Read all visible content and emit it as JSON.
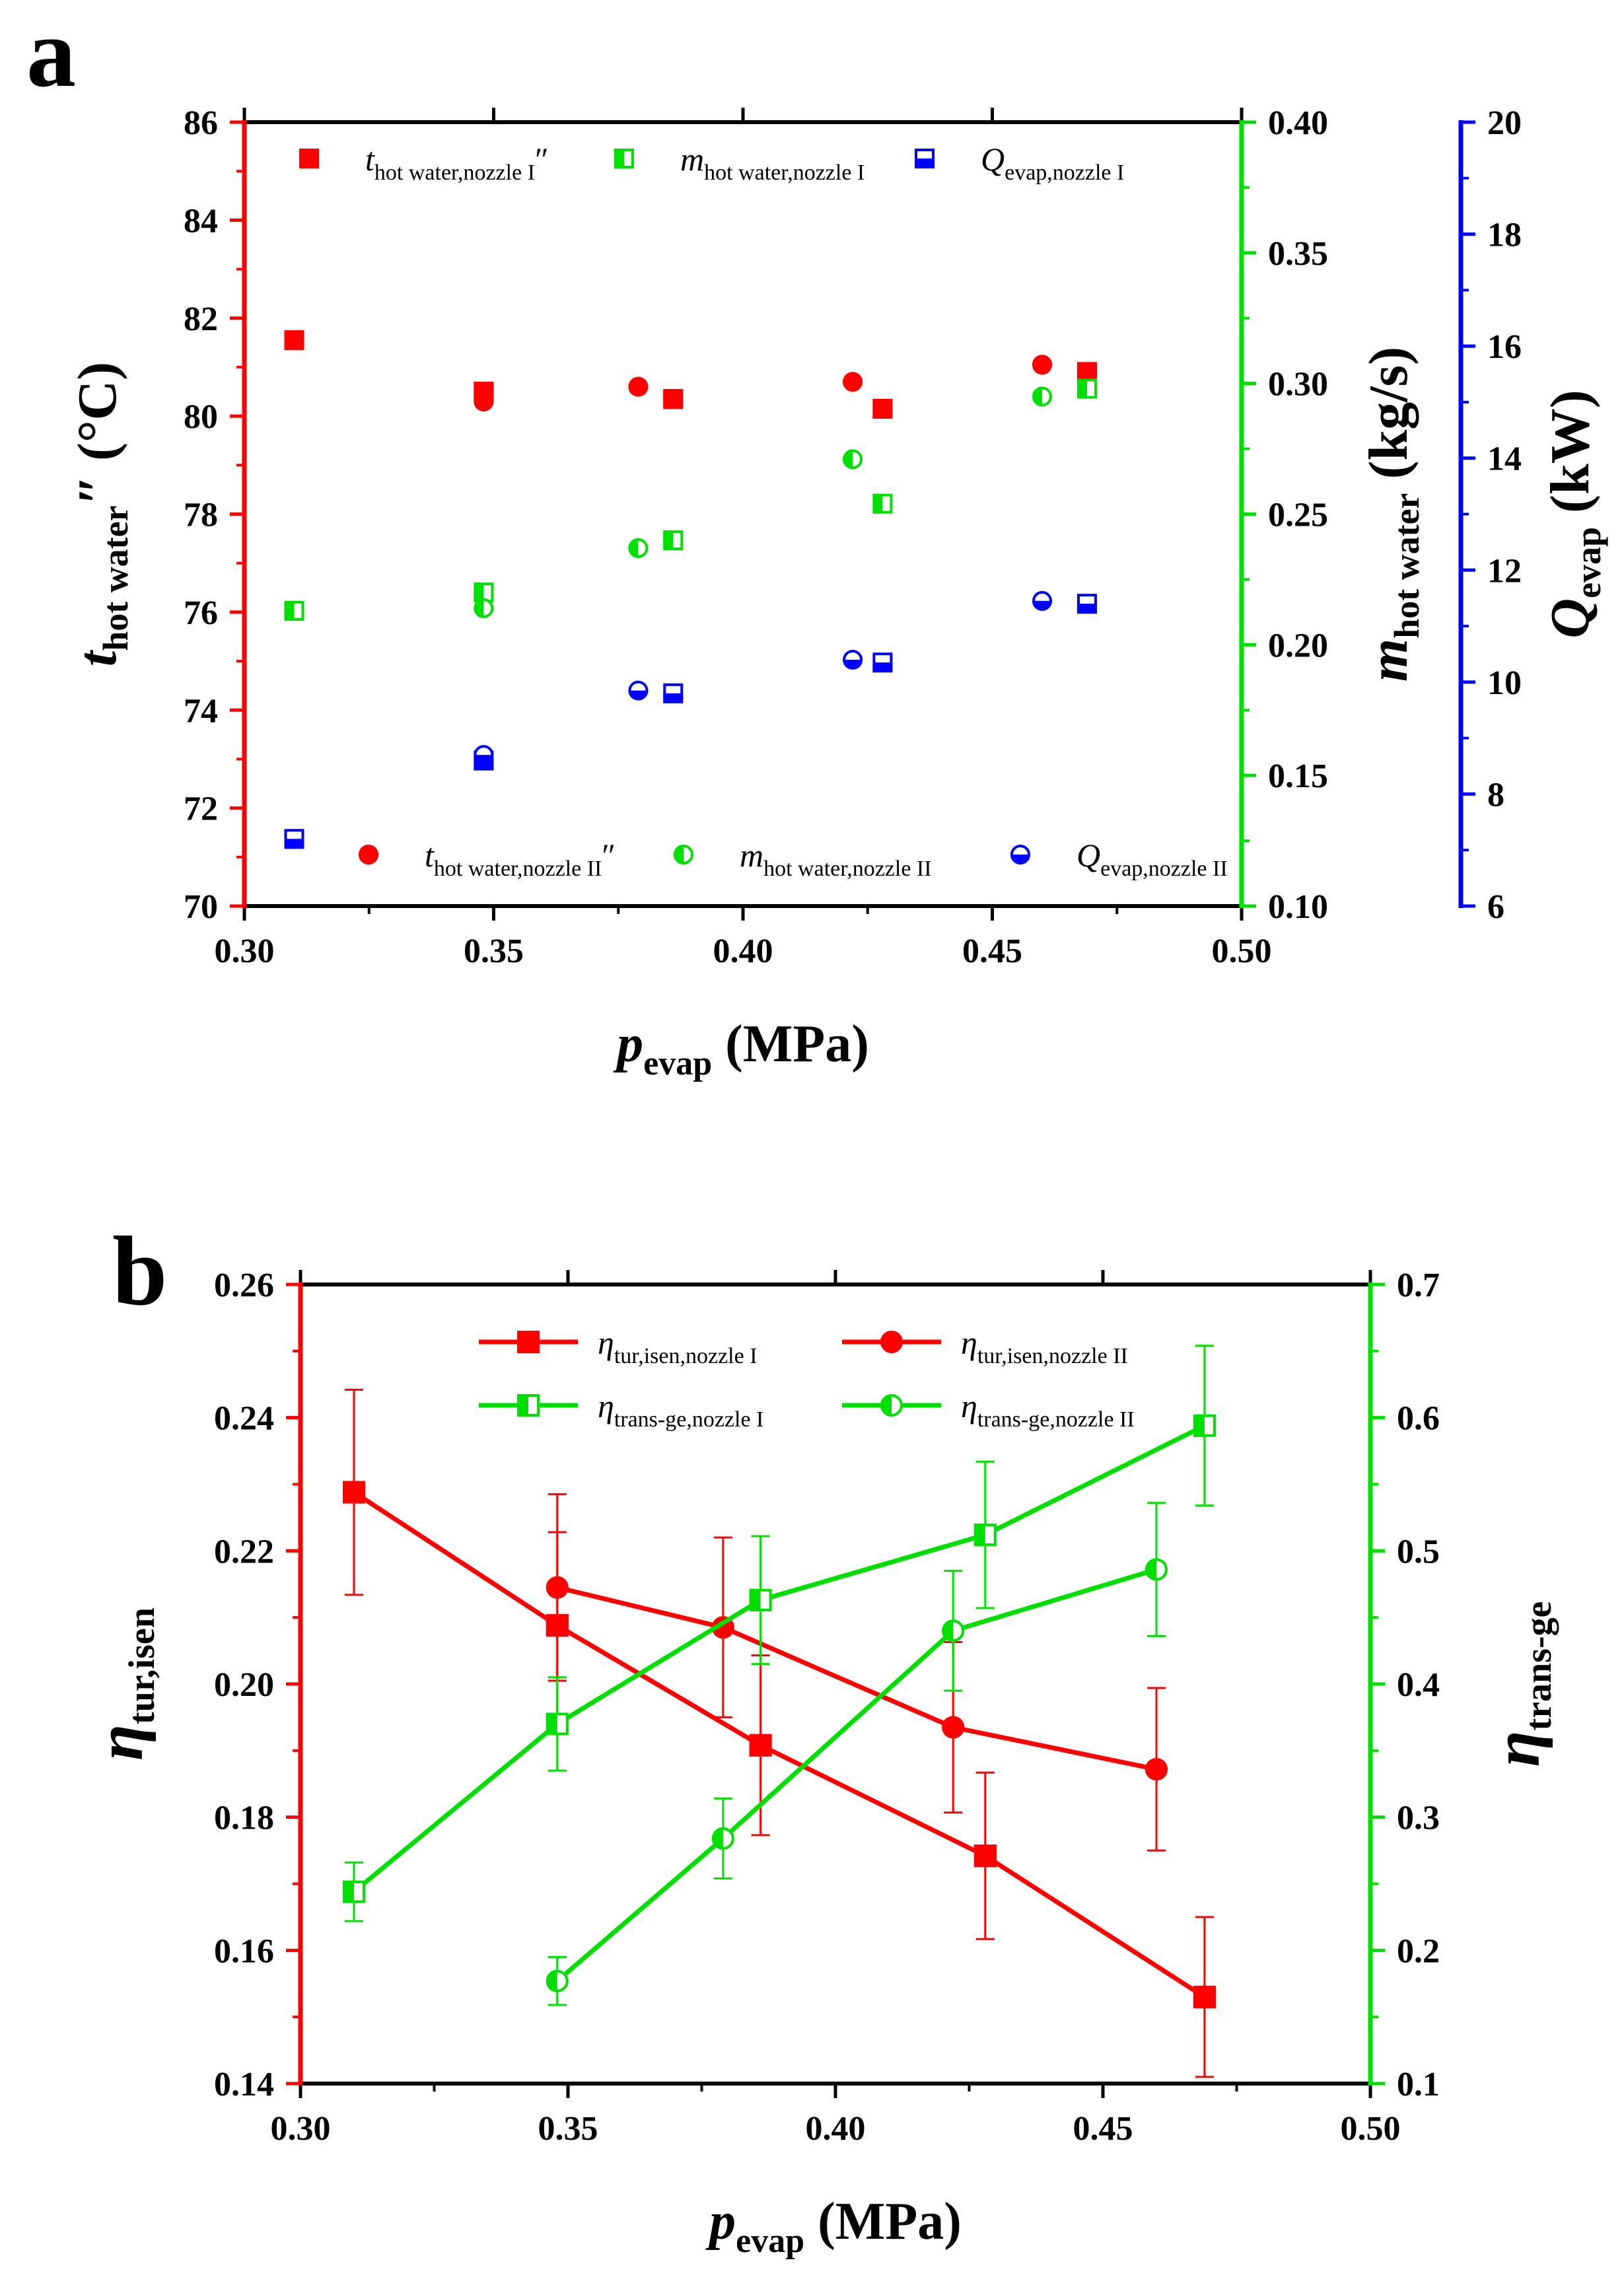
{
  "colors": {
    "red": "#ff0000",
    "green": "#00e000",
    "blue": "#0000ff",
    "black": "#000000"
  },
  "panels": {
    "a": {
      "letter": "a"
    },
    "b": {
      "letter": "b"
    }
  },
  "chart_data": [
    {
      "type": "scatter",
      "panel": "a",
      "x_axis": {
        "label": "p",
        "label_sub": "evap",
        "label_unit": " (MPa)",
        "range": [
          0.3,
          0.5
        ],
        "ticks": [
          0.3,
          0.35,
          0.4,
          0.45,
          0.5
        ],
        "tick_labels": [
          "0.30",
          "0.35",
          "0.40",
          "0.45",
          "0.50"
        ]
      },
      "y_axes": [
        {
          "id": "t",
          "side": "left",
          "color": "#ff0000",
          "label": "t",
          "label_sub": "hot water",
          "label_unit": "″ (°C)",
          "range": [
            70,
            86
          ],
          "ticks": [
            70,
            72,
            74,
            76,
            78,
            80,
            82,
            84,
            86
          ],
          "tick_labels": [
            "70",
            "72",
            "74",
            "76",
            "78",
            "80",
            "82",
            "84",
            "86"
          ]
        },
        {
          "id": "m",
          "side": "right",
          "color": "#00e000",
          "label": "m",
          "label_sub": "hot water",
          "label_unit": " (kg/s)",
          "range": [
            0.1,
            0.4
          ],
          "ticks": [
            0.1,
            0.15,
            0.2,
            0.25,
            0.3,
            0.35,
            0.4
          ],
          "tick_labels": [
            "0.10",
            "0.15",
            "0.20",
            "0.25",
            "0.30",
            "0.35",
            "0.40"
          ]
        },
        {
          "id": "q",
          "side": "right-offset",
          "color": "#0000ff",
          "label": "Q",
          "label_sub": "evap",
          "label_unit": " (kW)",
          "range": [
            6,
            20
          ],
          "ticks": [
            6,
            8,
            10,
            12,
            14,
            16,
            18,
            20
          ],
          "tick_labels": [
            "6",
            "8",
            "10",
            "12",
            "14",
            "16",
            "18",
            "20"
          ]
        }
      ],
      "series": [
        {
          "name": "t_hot water,nozzle I″",
          "label_main": "t",
          "label_sub": "hot water,nozzle I",
          "label_suffix": "″",
          "axis": "t",
          "marker": "square",
          "fill": "full",
          "color": "#ff0000",
          "x": [
            0.31,
            0.348,
            0.386,
            0.428,
            0.469
          ],
          "y": [
            81.55,
            80.5,
            80.35,
            80.15,
            80.9
          ]
        },
        {
          "name": "m_hot water,nozzle I",
          "label_main": "m",
          "label_sub": "hot water,nozzle I",
          "label_suffix": "",
          "axis": "m",
          "marker": "square",
          "fill": "left",
          "color": "#00e000",
          "x": [
            0.31,
            0.348,
            0.386,
            0.428,
            0.469
          ],
          "y": [
            0.213,
            0.22,
            0.24,
            0.254,
            0.298
          ]
        },
        {
          "name": "Q_evap,nozzle I",
          "label_main": "Q",
          "label_sub": "evap,nozzle I",
          "label_suffix": "",
          "axis": "q",
          "marker": "square",
          "fill": "bottom",
          "color": "#0000ff",
          "x": [
            0.31,
            0.348,
            0.386,
            0.428,
            0.469
          ],
          "y": [
            7.2,
            8.6,
            9.8,
            10.35,
            11.4
          ]
        },
        {
          "name": "t_hot water,nozzle II″",
          "label_main": "t",
          "label_sub": "hot water,nozzle II",
          "label_suffix": "″",
          "axis": "t",
          "marker": "circle",
          "fill": "full",
          "color": "#ff0000",
          "x": [
            0.348,
            0.379,
            0.422,
            0.46
          ],
          "y": [
            80.3,
            80.6,
            80.7,
            81.05
          ]
        },
        {
          "name": "m_hot water,nozzle II",
          "label_main": "m",
          "label_sub": "hot water,nozzle II",
          "label_suffix": "",
          "axis": "m",
          "marker": "circle",
          "fill": "left",
          "color": "#00e000",
          "x": [
            0.348,
            0.379,
            0.422,
            0.46
          ],
          "y": [
            0.214,
            0.237,
            0.271,
            0.295
          ]
        },
        {
          "name": "Q_evap,nozzle II",
          "label_main": "Q",
          "label_sub": "evap,nozzle II",
          "label_suffix": "",
          "axis": "q",
          "marker": "circle",
          "fill": "bottom",
          "color": "#0000ff",
          "x": [
            0.348,
            0.379,
            0.422,
            0.46
          ],
          "y": [
            8.7,
            9.85,
            10.4,
            11.45
          ]
        }
      ]
    },
    {
      "type": "line",
      "panel": "b",
      "x_axis": {
        "label": "p",
        "label_sub": "evap",
        "label_unit": " (MPa)",
        "range": [
          0.3,
          0.5
        ],
        "ticks": [
          0.3,
          0.35,
          0.4,
          0.45,
          0.5
        ],
        "tick_labels": [
          "0.30",
          "0.35",
          "0.40",
          "0.45",
          "0.50"
        ]
      },
      "y_axes": [
        {
          "id": "tur",
          "side": "left",
          "color": "#ff0000",
          "label": "η",
          "label_sub": "tur,isen",
          "label_unit": "",
          "range": [
            0.14,
            0.26
          ],
          "ticks": [
            0.14,
            0.16,
            0.18,
            0.2,
            0.22,
            0.24,
            0.26
          ],
          "tick_labels": [
            "0.14",
            "0.16",
            "0.18",
            "0.20",
            "0.22",
            "0.24",
            "0.26"
          ]
        },
        {
          "id": "trans",
          "side": "right",
          "color": "#00e000",
          "label": "η",
          "label_sub": "trans-ge",
          "label_unit": "",
          "range": [
            0.1,
            0.7
          ],
          "ticks": [
            0.1,
            0.2,
            0.3,
            0.4,
            0.5,
            0.6,
            0.7
          ],
          "tick_labels": [
            "0.1",
            "0.2",
            "0.3",
            "0.4",
            "0.5",
            "0.6",
            "0.7"
          ]
        }
      ],
      "series": [
        {
          "name": "η_tur,isen,nozzle I",
          "label_main": "η",
          "label_sub": "tur,isen,nozzle I",
          "axis": "tur",
          "marker": "square",
          "fill": "full",
          "color": "#ff0000",
          "x": [
            0.31,
            0.348,
            0.386,
            0.428,
            0.469
          ],
          "y": [
            0.2288,
            0.2088,
            0.1908,
            0.1742,
            0.153
          ],
          "err": [
            0.0154,
            0.014,
            0.0135,
            0.0125,
            0.012
          ]
        },
        {
          "name": "η_tur,isen,nozzle II",
          "label_main": "η",
          "label_sub": "tur,isen,nozzle II",
          "axis": "tur",
          "marker": "circle",
          "fill": "full",
          "color": "#ff0000",
          "x": [
            0.348,
            0.379,
            0.422,
            0.46
          ],
          "y": [
            0.2145,
            0.2085,
            0.1935,
            0.1872
          ],
          "err": [
            0.014,
            0.0135,
            0.0128,
            0.0122
          ]
        },
        {
          "name": "η_trans-ge,nozzle I",
          "label_main": "η",
          "label_sub": "trans-ge,nozzle I",
          "axis": "trans",
          "marker": "square",
          "fill": "left",
          "color": "#00e000",
          "x": [
            0.31,
            0.348,
            0.386,
            0.428,
            0.469
          ],
          "y": [
            0.244,
            0.37,
            0.463,
            0.512,
            0.594
          ],
          "err": [
            0.022,
            0.035,
            0.048,
            0.055,
            0.06
          ]
        },
        {
          "name": "η_trans-ge,nozzle II",
          "label_main": "η",
          "label_sub": "trans-ge,nozzle II",
          "axis": "trans",
          "marker": "circle",
          "fill": "left",
          "color": "#00e000",
          "x": [
            0.348,
            0.379,
            0.422,
            0.46
          ],
          "y": [
            0.177,
            0.284,
            0.44,
            0.486
          ],
          "err": [
            0.018,
            0.03,
            0.045,
            0.05
          ]
        }
      ]
    }
  ]
}
